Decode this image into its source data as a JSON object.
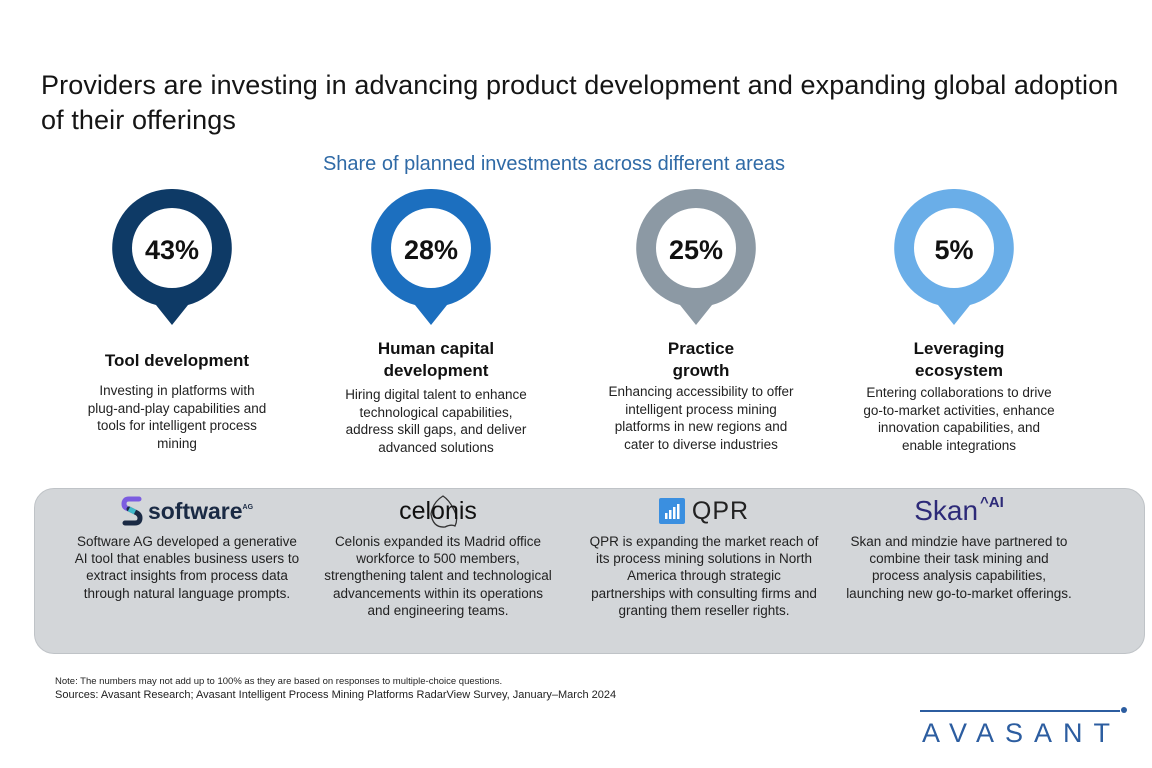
{
  "header": {
    "title": "Providers are investing in advancing product development and expanding global adoption of their offerings"
  },
  "chart_data": {
    "type": "bar",
    "title": "Share of planned investments across different areas",
    "categories": [
      "Tool development",
      "Human capital development",
      "Practice growth",
      "Leveraging ecosystem"
    ],
    "values": [
      43,
      28,
      25,
      5
    ],
    "labels": [
      "43%",
      "28%",
      "25%",
      "5%"
    ],
    "unit": "%",
    "colors": [
      "#0e3a66",
      "#1c6fbf",
      "#8c99a4",
      "#6aaee8"
    ],
    "descriptions": [
      "Investing in platforms with plug-and-play capabilities and tools for intelligent process mining",
      "Hiring digital talent to enhance technological capabilities, address skill gaps, and deliver advanced solutions",
      "Enhancing accessibility to offer intelligent process mining platforms in new regions and cater to diverse industries",
      "Entering collaborations to drive go-to-market activities, enhance innovation capabilities, and enable integrations"
    ]
  },
  "title_lines": [
    [
      "Tool development"
    ],
    [
      "Human capital",
      "development"
    ],
    [
      "Practice",
      "growth"
    ],
    [
      "Leveraging",
      "ecosystem"
    ]
  ],
  "case_studies": [
    {
      "logo_text": "software",
      "logo_suffix": "AG",
      "icon": "software-ag-s-icon",
      "text": "Software AG developed a generative AI tool that enables business users to extract insights from process data through natural language prompts."
    },
    {
      "logo_text": "celonis",
      "icon": "celonis-logo",
      "text": "Celonis expanded its Madrid office workforce to 500 members, strengthening talent and technological advancements within its operations and engineering teams."
    },
    {
      "logo_text": "QPR",
      "icon": "bar-chart-icon",
      "text": "QPR is expanding the market reach of its process mining solutions in North America through strategic partnerships with consulting firms and granting them reseller rights."
    },
    {
      "logo_text": "Skan",
      "logo_suffix": "^AI",
      "icon": "skan-ai-logo",
      "text": "Skan and mindzie have partnered to combine their task mining and process analysis capabilities, launching new go-to-market offerings."
    }
  ],
  "footer": {
    "note": "Note: The numbers may not add up to 100% as they are based on responses to multiple-choice questions.",
    "sources": "Sources: Avasant Research; Avasant Intelligent Process Mining Platforms RadarView Survey, January–March 2024",
    "brand": "AVASANT"
  }
}
